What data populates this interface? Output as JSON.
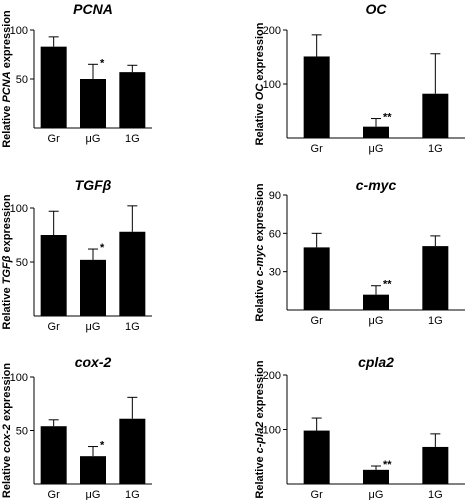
{
  "chart_data": [
    {
      "type": "bar",
      "title": "PCNA",
      "ylabel_parts": [
        {
          "t": "Relative ",
          "i": false
        },
        {
          "t": "PCNA",
          "i": true
        },
        {
          "t": " expression",
          "i": false
        }
      ],
      "categories": [
        "Gr",
        "μG",
        "1G"
      ],
      "values": [
        83,
        50,
        57
      ],
      "error": [
        10,
        15,
        7
      ],
      "significance": [
        "",
        "*",
        ""
      ],
      "ylim": [
        0,
        100
      ],
      "yticks": [
        50,
        100
      ]
    },
    {
      "type": "bar",
      "title": "OC",
      "ylabel_parts": [
        {
          "t": "Relative ",
          "i": false
        },
        {
          "t": "OC",
          "i": true
        },
        {
          "t": " expression",
          "i": false
        }
      ],
      "categories": [
        "Gr",
        "μG",
        "1G"
      ],
      "values": [
        151,
        21,
        82
      ],
      "error": [
        40,
        15,
        74
      ],
      "significance": [
        "",
        "**",
        ""
      ],
      "ylim": [
        0,
        200
      ],
      "yticks": [
        100,
        200
      ]
    },
    {
      "type": "bar",
      "title": "TGFβ",
      "title_parts": [
        {
          "t": "TGF",
          "i": true
        },
        {
          "t": "β",
          "i": false
        }
      ],
      "ylabel_parts": [
        {
          "t": "Relative ",
          "i": false
        },
        {
          "t": "TGFβ",
          "i": true
        },
        {
          "t": " expression",
          "i": false
        }
      ],
      "categories": [
        "Gr",
        "μG",
        "1G"
      ],
      "values": [
        75,
        52,
        78
      ],
      "error": [
        22,
        10,
        24
      ],
      "significance": [
        "",
        "*",
        ""
      ],
      "ylim": [
        0,
        100
      ],
      "yticks": [
        50,
        100
      ]
    },
    {
      "type": "bar",
      "title": "c-myc",
      "ylabel_parts": [
        {
          "t": "Relative ",
          "i": false
        },
        {
          "t": "c-myc",
          "i": true
        },
        {
          "t": " expression",
          "i": false
        }
      ],
      "categories": [
        "Gr",
        "μG",
        "1G"
      ],
      "values": [
        49,
        12,
        50
      ],
      "error": [
        11,
        7,
        8
      ],
      "significance": [
        "",
        "**",
        ""
      ],
      "ylim": [
        0,
        90
      ],
      "yticks": [
        30,
        60,
        90
      ]
    },
    {
      "type": "bar",
      "title": "cox-2",
      "ylabel_parts": [
        {
          "t": "Relative ",
          "i": false
        },
        {
          "t": "cox-2",
          "i": true
        },
        {
          "t": " expression",
          "i": false
        }
      ],
      "categories": [
        "Gr",
        "μG",
        "1G"
      ],
      "values": [
        54,
        26,
        61
      ],
      "error": [
        6,
        9,
        20
      ],
      "significance": [
        "",
        "*",
        ""
      ],
      "ylim": [
        0,
        100
      ],
      "yticks": [
        50,
        100
      ]
    },
    {
      "type": "bar",
      "title": "cpla2",
      "ylabel_parts": [
        {
          "t": "Relative ",
          "i": false
        },
        {
          "t": "c-pla2",
          "i": true
        },
        {
          "t": " expression",
          "i": false
        }
      ],
      "categories": [
        "Gr",
        "μG",
        "1G"
      ],
      "values": [
        98,
        26,
        68
      ],
      "error": [
        23,
        7,
        24
      ],
      "significance": [
        "",
        "**",
        ""
      ],
      "ylim": [
        0,
        200
      ],
      "yticks": [
        100,
        200
      ]
    }
  ]
}
